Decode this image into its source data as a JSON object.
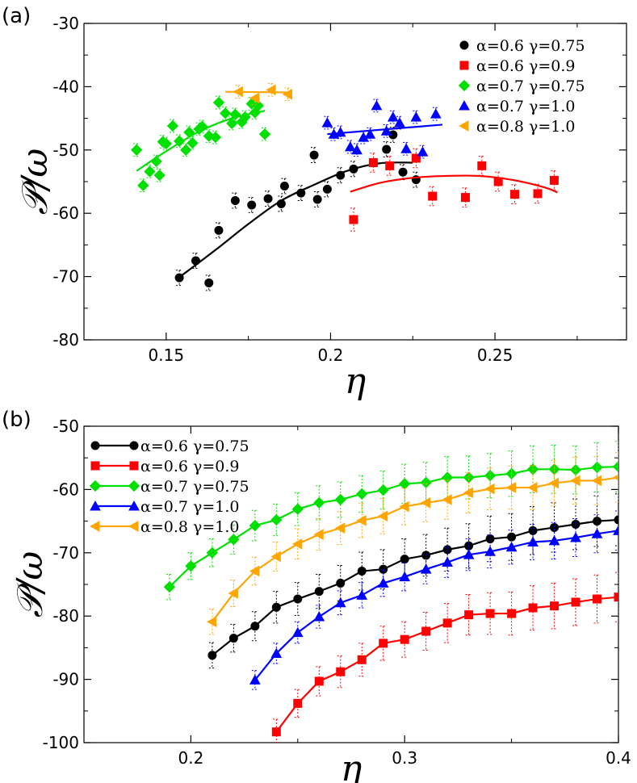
{
  "chart_data": [
    {
      "panel_label": "(a)",
      "type": "scatter",
      "xlabel": "η",
      "ylabel": "𝒫/ω",
      "xlim": [
        0.125,
        0.29
      ],
      "ylim": [
        -80,
        -30
      ],
      "xticks": [
        0.15,
        0.2,
        0.25
      ],
      "xtick_labels": [
        "0.15",
        "0.2",
        "0.25"
      ],
      "yticks": [
        -80,
        -70,
        -60,
        -50,
        -40,
        -30
      ],
      "ytick_labels": [
        "-80",
        "-70",
        "-60",
        "-50",
        "-40",
        "-30"
      ],
      "legend_position": "top-right",
      "series": [
        {
          "name": "α=0.6 γ=0.75",
          "color": "#000000",
          "marker": "circle",
          "x": [
            0.154,
            0.159,
            0.163,
            0.166,
            0.171,
            0.176,
            0.181,
            0.186,
            0.191,
            0.196,
            0.199,
            0.203,
            0.207,
            0.217,
            0.219,
            0.222,
            0.226,
            0.185,
            0.195
          ],
          "y": [
            -70.2,
            -67.5,
            -71.0,
            -62.7,
            -58.0,
            -58.7,
            -57.7,
            -55.7,
            -56.8,
            -57.8,
            -56.2,
            -54.0,
            -53.0,
            -49.9,
            -47.6,
            -53.5,
            -54.7,
            -58.5,
            -50.8
          ],
          "err": [
            1.2,
            1.2,
            1.2,
            1.2,
            1.2,
            1.2,
            1.2,
            1.2,
            1.2,
            1.2,
            1.2,
            1.2,
            1.2,
            1.2,
            1.2,
            1.2,
            1.2,
            1.2,
            1.2
          ],
          "fit_x": [
            0.153,
            0.165,
            0.175,
            0.185,
            0.195,
            0.205,
            0.215,
            0.225
          ],
          "fit_y": [
            -70.5,
            -65.8,
            -61.7,
            -58.0,
            -55.5,
            -53.3,
            -52.1,
            -52.0
          ]
        },
        {
          "name": "α=0.6 γ=0.9",
          "color": "#ff0000",
          "marker": "square",
          "x": [
            0.207,
            0.213,
            0.218,
            0.226,
            0.231,
            0.241,
            0.246,
            0.251,
            0.256,
            0.263,
            0.268
          ],
          "y": [
            -61.0,
            -52.0,
            -52.5,
            -51.3,
            -57.3,
            -57.5,
            -52.5,
            -55.0,
            -57.0,
            -56.9,
            -54.8
          ],
          "err": [
            1.8,
            1.5,
            1.5,
            1.5,
            1.5,
            1.5,
            1.5,
            1.5,
            1.5,
            1.5,
            1.5
          ],
          "fit_x": [
            0.206,
            0.215,
            0.225,
            0.235,
            0.245,
            0.255,
            0.265,
            0.269
          ],
          "fit_y": [
            -56.6,
            -55.2,
            -54.4,
            -54.1,
            -54.1,
            -54.7,
            -55.9,
            -56.7
          ]
        },
        {
          "name": "α=0.7 γ=0.75",
          "color": "#00e000",
          "marker": "diamond",
          "x": [
            0.141,
            0.143,
            0.145,
            0.147,
            0.148,
            0.149,
            0.15,
            0.152,
            0.154,
            0.156,
            0.157,
            0.158,
            0.16,
            0.161,
            0.163,
            0.165,
            0.166,
            0.168,
            0.17,
            0.171,
            0.173,
            0.174,
            0.176,
            0.177,
            0.178,
            0.18
          ],
          "y": [
            -50.0,
            -55.6,
            -53.4,
            -51.8,
            -54.0,
            -48.7,
            -49.0,
            -46.2,
            -48.6,
            -50.0,
            -47.2,
            -48.9,
            -46.7,
            -46.3,
            -47.8,
            -48.0,
            -42.5,
            -44.2,
            -45.8,
            -44.4,
            -45.6,
            -44.8,
            -42.7,
            -44.1,
            -43.0,
            -47.5
          ],
          "err": [
            1.0,
            1.0,
            1.0,
            1.0,
            1.0,
            1.0,
            1.0,
            1.0,
            1.0,
            1.0,
            1.0,
            1.0,
            1.0,
            1.0,
            1.0,
            1.0,
            1.0,
            1.0,
            1.0,
            1.0,
            1.0,
            1.0,
            1.0,
            1.0,
            1.0,
            1.0
          ],
          "fit_x": [
            0.141,
            0.15,
            0.16,
            0.17,
            0.18
          ],
          "fit_y": [
            -53.3,
            -50.2,
            -47.1,
            -45.0,
            -43.8
          ]
        },
        {
          "name": "α=0.7 γ=1.0",
          "color": "#0000ff",
          "marker": "triangle-up",
          "x": [
            0.199,
            0.201,
            0.203,
            0.206,
            0.208,
            0.21,
            0.212,
            0.214,
            0.217,
            0.219,
            0.221,
            0.223,
            0.226,
            0.228,
            0.232
          ],
          "y": [
            -45.7,
            -47.5,
            -47.2,
            -49.5,
            -50.0,
            -48.0,
            -47.5,
            -43.0,
            -47.0,
            -44.8,
            -45.7,
            -49.8,
            -44.8,
            -50.3,
            -44.3
          ],
          "err": [
            1.0,
            1.0,
            1.0,
            1.0,
            1.0,
            1.0,
            1.0,
            1.0,
            1.0,
            1.0,
            1.0,
            1.0,
            1.0,
            1.0,
            1.0
          ],
          "fit_x": [
            0.199,
            0.234
          ],
          "fit_y": [
            -47.5,
            -46.0
          ]
        },
        {
          "name": "α=0.8 γ=1.0",
          "color": "#ffa500",
          "marker": "triangle-left",
          "x": [
            0.172,
            0.177,
            0.182,
            0.187
          ],
          "y": [
            -40.8,
            -41.8,
            -40.5,
            -41.2
          ],
          "err": [
            1.0,
            1.0,
            1.0,
            1.0
          ],
          "fit_x": [
            0.168,
            0.187
          ],
          "fit_y": [
            -40.8,
            -40.9
          ]
        }
      ]
    },
    {
      "panel_label": "(b)",
      "type": "line",
      "xlabel": "η",
      "ylabel": "𝒫/ω",
      "xlim": [
        0.15,
        0.4
      ],
      "ylim": [
        -100,
        -50
      ],
      "xticks": [
        0.2,
        0.3,
        0.4
      ],
      "xtick_labels": [
        "0.2",
        "0.3",
        "0.4"
      ],
      "yticks": [
        -100,
        -90,
        -80,
        -70,
        -60,
        -50
      ],
      "ytick_labels": [
        "-100",
        "-90",
        "-80",
        "-70",
        "-60",
        "-50"
      ],
      "legend_position": "top-left",
      "series": [
        {
          "name": "α=0.6 γ=0.75",
          "color": "#000000",
          "marker": "circle",
          "x": [
            0.21,
            0.22,
            0.23,
            0.24,
            0.25,
            0.26,
            0.27,
            0.28,
            0.29,
            0.3,
            0.31,
            0.32,
            0.33,
            0.34,
            0.35,
            0.36,
            0.37,
            0.38,
            0.39,
            0.4
          ],
          "y": [
            -86.2,
            -83.5,
            -81.6,
            -78.6,
            -77.3,
            -76.1,
            -74.8,
            -72.9,
            -72.6,
            -71.0,
            -70.4,
            -69.5,
            -68.9,
            -67.8,
            -67.5,
            -66.5,
            -66.0,
            -65.5,
            -65.0,
            -64.8
          ],
          "err": [
            2.0,
            2.2,
            2.3,
            2.5,
            2.6,
            2.7,
            2.8,
            3.0,
            3.1,
            3.2,
            3.3,
            3.4,
            3.5,
            3.6,
            3.7,
            3.8,
            3.9,
            4.0,
            4.0,
            4.1
          ]
        },
        {
          "name": "α=0.6 γ=0.9",
          "color": "#ff0000",
          "marker": "square",
          "x": [
            0.24,
            0.25,
            0.26,
            0.27,
            0.28,
            0.29,
            0.3,
            0.31,
            0.32,
            0.33,
            0.34,
            0.35,
            0.36,
            0.37,
            0.38,
            0.39,
            0.4
          ],
          "y": [
            -98.3,
            -93.8,
            -90.3,
            -88.8,
            -86.9,
            -84.3,
            -83.7,
            -82.4,
            -81.1,
            -79.8,
            -79.6,
            -79.6,
            -78.7,
            -78.4,
            -77.8,
            -77.3,
            -77.0
          ],
          "err": [
            2.0,
            2.2,
            2.3,
            2.5,
            2.6,
            2.7,
            2.8,
            3.0,
            3.1,
            3.2,
            3.3,
            3.4,
            3.5,
            3.6,
            3.7,
            3.8,
            3.9
          ]
        },
        {
          "name": "α=0.7 γ=0.75",
          "color": "#00e000",
          "marker": "diamond",
          "x": [
            0.19,
            0.2,
            0.21,
            0.22,
            0.23,
            0.24,
            0.25,
            0.26,
            0.27,
            0.28,
            0.29,
            0.3,
            0.31,
            0.32,
            0.33,
            0.34,
            0.35,
            0.36,
            0.37,
            0.38,
            0.39,
            0.4
          ],
          "y": [
            -75.4,
            -72.1,
            -70.0,
            -67.9,
            -65.7,
            -64.8,
            -63.1,
            -62.1,
            -61.6,
            -60.7,
            -60.1,
            -59.1,
            -58.9,
            -58.1,
            -58.1,
            -57.8,
            -57.5,
            -56.8,
            -56.8,
            -56.9,
            -56.5,
            -56.4
          ],
          "err": [
            2.0,
            2.1,
            2.2,
            2.3,
            2.4,
            2.5,
            2.6,
            2.7,
            2.8,
            2.9,
            3.0,
            3.1,
            3.2,
            3.3,
            3.4,
            3.5,
            3.6,
            3.7,
            3.8,
            3.8,
            3.9,
            4.0
          ]
        },
        {
          "name": "α=0.7 γ=1.0",
          "color": "#0000ff",
          "marker": "triangle-up",
          "x": [
            0.23,
            0.24,
            0.25,
            0.26,
            0.27,
            0.28,
            0.29,
            0.3,
            0.31,
            0.32,
            0.33,
            0.34,
            0.35,
            0.36,
            0.37,
            0.38,
            0.39,
            0.4
          ],
          "y": [
            -90.1,
            -85.9,
            -82.6,
            -80.1,
            -77.9,
            -76.7,
            -74.8,
            -73.8,
            -72.6,
            -71.5,
            -70.3,
            -69.8,
            -69.1,
            -68.3,
            -68.1,
            -67.6,
            -67.0,
            -66.5
          ],
          "err": [
            1.5,
            1.6,
            1.7,
            1.8,
            1.9,
            2.0,
            2.1,
            2.2,
            2.3,
            2.4,
            2.5,
            2.6,
            2.7,
            2.8,
            2.9,
            3.0,
            3.0,
            3.1
          ]
        },
        {
          "name": "α=0.8 γ=1.0",
          "color": "#ffa500",
          "marker": "triangle-left",
          "x": [
            0.21,
            0.22,
            0.23,
            0.24,
            0.25,
            0.26,
            0.27,
            0.28,
            0.29,
            0.3,
            0.31,
            0.32,
            0.33,
            0.34,
            0.35,
            0.36,
            0.37,
            0.38,
            0.39,
            0.4
          ],
          "y": [
            -80.9,
            -76.4,
            -72.9,
            -70.6,
            -68.6,
            -67.1,
            -66.1,
            -64.9,
            -64.2,
            -62.7,
            -62.1,
            -61.6,
            -60.5,
            -59.9,
            -59.7,
            -59.7,
            -59.0,
            -58.6,
            -58.6,
            -58.1
          ],
          "err": [
            2.0,
            2.1,
            2.2,
            2.3,
            2.4,
            2.5,
            2.6,
            2.7,
            2.8,
            2.9,
            3.0,
            3.1,
            3.2,
            3.3,
            3.4,
            3.5,
            3.6,
            3.7,
            3.8,
            3.9
          ]
        }
      ]
    }
  ]
}
